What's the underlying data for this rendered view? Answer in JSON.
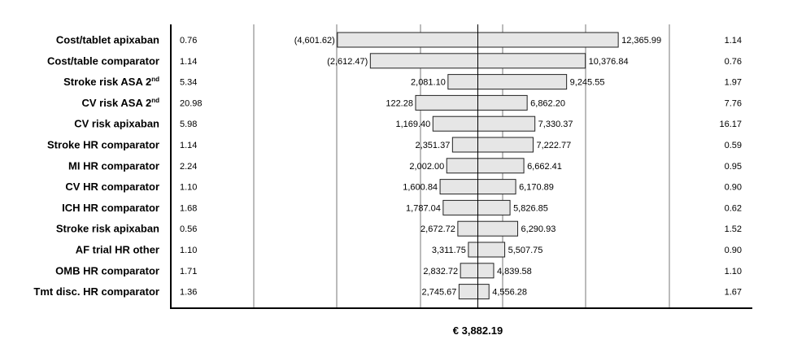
{
  "chart_data": {
    "type": "bar",
    "subtype": "tornado",
    "base_value": 3882.19,
    "base_label": "€ 3,882.19",
    "xlim": [
      -12000,
      22000
    ],
    "grid": "vertical",
    "rows": [
      {
        "label": "Cost/tablet apixaban",
        "label_sup": "",
        "low_param": "0.76",
        "high_param": "1.14",
        "low": -4601.62,
        "high": 12365.99,
        "low_text": "(4,601.62)",
        "high_text": "12,365.99"
      },
      {
        "label": "Cost/table comparator",
        "label_sup": "",
        "low_param": "1.14",
        "high_param": "0.76",
        "low": -2612.47,
        "high": 10376.84,
        "low_text": "(2,612.47)",
        "high_text": "10,376.84"
      },
      {
        "label": "Stroke risk ASA 2",
        "label_sup": "nd",
        "low_param": "5.34",
        "high_param": "1.97",
        "low": 2081.1,
        "high": 9245.55,
        "low_text": "2,081.10",
        "high_text": "9,245.55"
      },
      {
        "label": "CV risk ASA 2",
        "label_sup": "nd",
        "low_param": "20.98",
        "high_param": "7.76",
        "low": 122.28,
        "high": 6862.2,
        "low_text": "122.28",
        "high_text": "6,862.20"
      },
      {
        "label": "CV risk apixaban",
        "label_sup": "",
        "low_param": "5.98",
        "high_param": "16.17",
        "low": 1169.4,
        "high": 7330.37,
        "low_text": "1,169.40",
        "high_text": "7,330.37"
      },
      {
        "label": "Stroke HR comparator",
        "label_sup": "",
        "low_param": "1.14",
        "high_param": "0.59",
        "low": 2351.37,
        "high": 7222.77,
        "low_text": "2,351.37",
        "high_text": "7,222.77"
      },
      {
        "label": "MI HR comparator",
        "label_sup": "",
        "low_param": "2.24",
        "high_param": "0.95",
        "low": 2002.0,
        "high": 6662.41,
        "low_text": "2,002.00",
        "high_text": "6,662.41"
      },
      {
        "label": "CV HR comparator",
        "label_sup": "",
        "low_param": "1.10",
        "high_param": "0.90",
        "low": 1600.84,
        "high": 6170.89,
        "low_text": "1,600.84",
        "high_text": "6,170.89"
      },
      {
        "label": "ICH HR comparator",
        "label_sup": "",
        "low_param": "1.68",
        "high_param": "0.62",
        "low": 1787.04,
        "high": 5826.85,
        "low_text": "1,787.04",
        "high_text": "5,826.85"
      },
      {
        "label": "Stroke risk apixaban",
        "label_sup": "",
        "low_param": "0.56",
        "high_param": "1.52",
        "low": 2672.72,
        "high": 6290.93,
        "low_text": "2,672.72",
        "high_text": "6,290.93"
      },
      {
        "label": "AF trial HR other",
        "label_sup": "",
        "low_param": "1.10",
        "high_param": "0.90",
        "low": 3311.75,
        "high": 5507.75,
        "low_text": "3,311.75",
        "high_text": "5,507.75"
      },
      {
        "label": "OMB HR comparator",
        "label_sup": "",
        "low_param": "1.71",
        "high_param": "1.10",
        "low": 2832.72,
        "high": 4839.58,
        "low_text": "2,832.72",
        "high_text": "4,839.58"
      },
      {
        "label": "Tmt disc. HR comparator",
        "label_sup": "",
        "low_param": "1.36",
        "high_param": "1.67",
        "low": 2745.67,
        "high": 4556.28,
        "low_text": "2,745.67",
        "high_text": "4,556.28"
      }
    ],
    "colors": {
      "bar_fill": "#e6e6e6",
      "bar_stroke": "#222222",
      "grid": "#555555",
      "axis": "#000000"
    }
  }
}
